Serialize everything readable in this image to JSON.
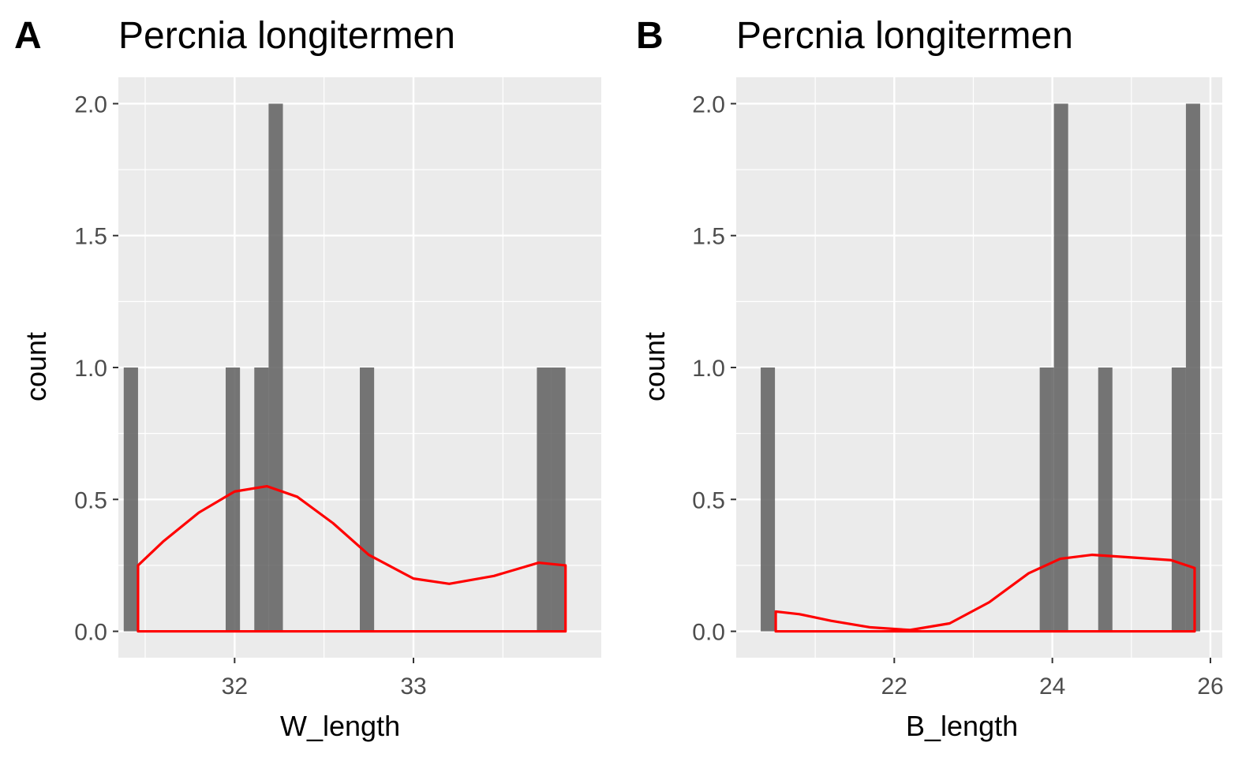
{
  "chart_data": [
    {
      "type": "bar",
      "tag": "A",
      "title": "Percnia longitermen",
      "xlabel": "W_length",
      "ylabel": "count",
      "xlim": [
        31.35,
        34.05
      ],
      "ylim": [
        -0.1,
        2.1
      ],
      "xticks": [
        32,
        33
      ],
      "yticks": [
        0.0,
        0.5,
        1.0,
        1.5,
        2.0
      ],
      "ytick_labels": [
        "0.0",
        "0.5",
        "1.0",
        "1.5",
        "2.0"
      ],
      "grid": true,
      "bin_width": 0.08,
      "bars": [
        {
          "x": 31.42,
          "count": 1
        },
        {
          "x": 31.99,
          "count": 1
        },
        {
          "x": 32.15,
          "count": 1
        },
        {
          "x": 32.23,
          "count": 2
        },
        {
          "x": 32.74,
          "count": 1
        },
        {
          "x": 33.73,
          "count": 1
        },
        {
          "x": 33.81,
          "count": 1
        }
      ],
      "density_line": {
        "color": "#ff0000",
        "x": [
          31.46,
          31.6,
          31.8,
          32.0,
          32.18,
          32.35,
          32.55,
          32.75,
          33.0,
          33.2,
          33.45,
          33.7,
          33.85
        ],
        "y": [
          0.25,
          0.34,
          0.45,
          0.53,
          0.55,
          0.51,
          0.41,
          0.29,
          0.2,
          0.18,
          0.21,
          0.26,
          0.25
        ]
      }
    },
    {
      "type": "bar",
      "tag": "B",
      "title": "Percnia longitermen",
      "xlabel": "B_length",
      "ylabel": "count",
      "xlim": [
        20.0,
        26.15
      ],
      "ylim": [
        -0.1,
        2.1
      ],
      "xticks": [
        22,
        24,
        26
      ],
      "yticks": [
        0.0,
        0.5,
        1.0,
        1.5,
        2.0
      ],
      "ytick_labels": [
        "0.0",
        "0.5",
        "1.0",
        "1.5",
        "2.0"
      ],
      "grid": true,
      "bin_width": 0.18,
      "bars": [
        {
          "x": 20.4,
          "count": 1
        },
        {
          "x": 23.93,
          "count": 1
        },
        {
          "x": 24.11,
          "count": 2
        },
        {
          "x": 24.67,
          "count": 1
        },
        {
          "x": 25.6,
          "count": 1
        },
        {
          "x": 25.78,
          "count": 2
        }
      ],
      "density_line": {
        "color": "#ff0000",
        "x": [
          20.5,
          20.8,
          21.2,
          21.7,
          22.2,
          22.7,
          23.2,
          23.7,
          24.1,
          24.5,
          25.0,
          25.5,
          25.8
        ],
        "y": [
          0.075,
          0.065,
          0.04,
          0.015,
          0.005,
          0.03,
          0.11,
          0.22,
          0.275,
          0.29,
          0.28,
          0.27,
          0.24
        ]
      }
    }
  ]
}
